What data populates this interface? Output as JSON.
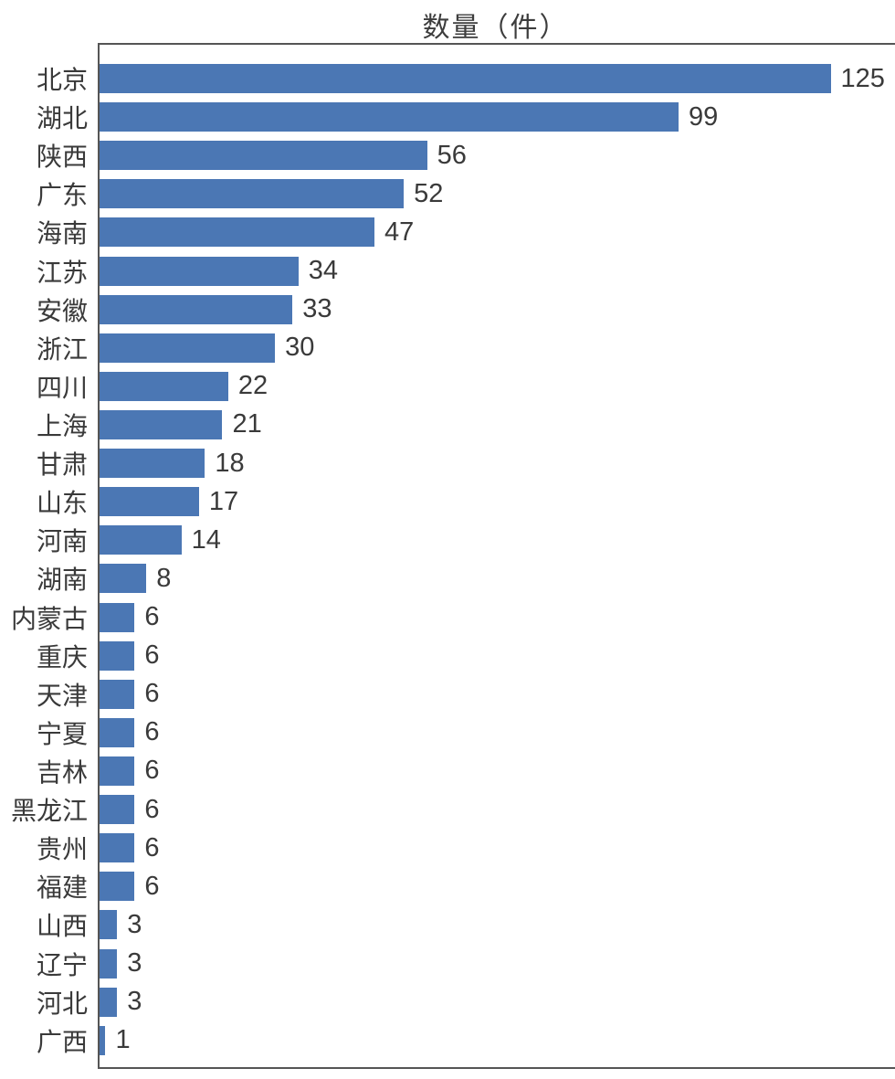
{
  "chart_data": {
    "type": "bar",
    "orientation": "horizontal",
    "title": "数量（件）",
    "categories": [
      "北京",
      "湖北",
      "陕西",
      "广东",
      "海南",
      "江苏",
      "安徽",
      "浙江",
      "四川",
      "上海",
      "甘肃",
      "山东",
      "河南",
      "湖南",
      "内蒙古",
      "重庆",
      "天津",
      "宁夏",
      "吉林",
      "黑龙江",
      "贵州",
      "福建",
      "山西",
      "辽宁",
      "河北",
      "广西"
    ],
    "values": [
      125,
      99,
      56,
      52,
      47,
      34,
      33,
      30,
      22,
      21,
      18,
      17,
      14,
      8,
      6,
      6,
      6,
      6,
      6,
      6,
      6,
      6,
      3,
      3,
      3,
      1
    ],
    "xlabel": "",
    "ylabel": "",
    "xlim": [
      0,
      136
    ],
    "grid": false,
    "legend_position": "none",
    "value_labels_shown": true
  },
  "colors": {
    "bar": "#4b77b4",
    "text": "#3a3a3a",
    "axis": "#555555",
    "background": "#ffffff"
  }
}
